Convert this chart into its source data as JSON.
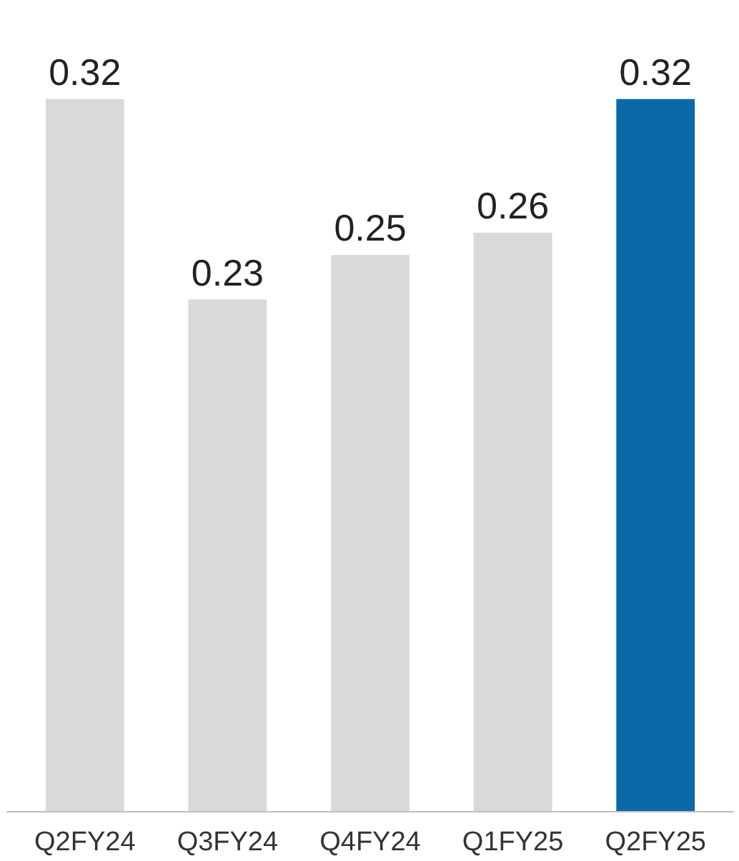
{
  "chart_data": {
    "type": "bar",
    "categories": [
      "Q2FY24",
      "Q3FY24",
      "Q4FY24",
      "Q1FY25",
      "Q2FY25"
    ],
    "values": [
      0.32,
      0.23,
      0.25,
      0.26,
      0.32
    ],
    "colors": [
      "#d9d9d9",
      "#d9d9d9",
      "#d9d9d9",
      "#d9d9d9",
      "#0a6aa8"
    ],
    "data_labels": true
  }
}
